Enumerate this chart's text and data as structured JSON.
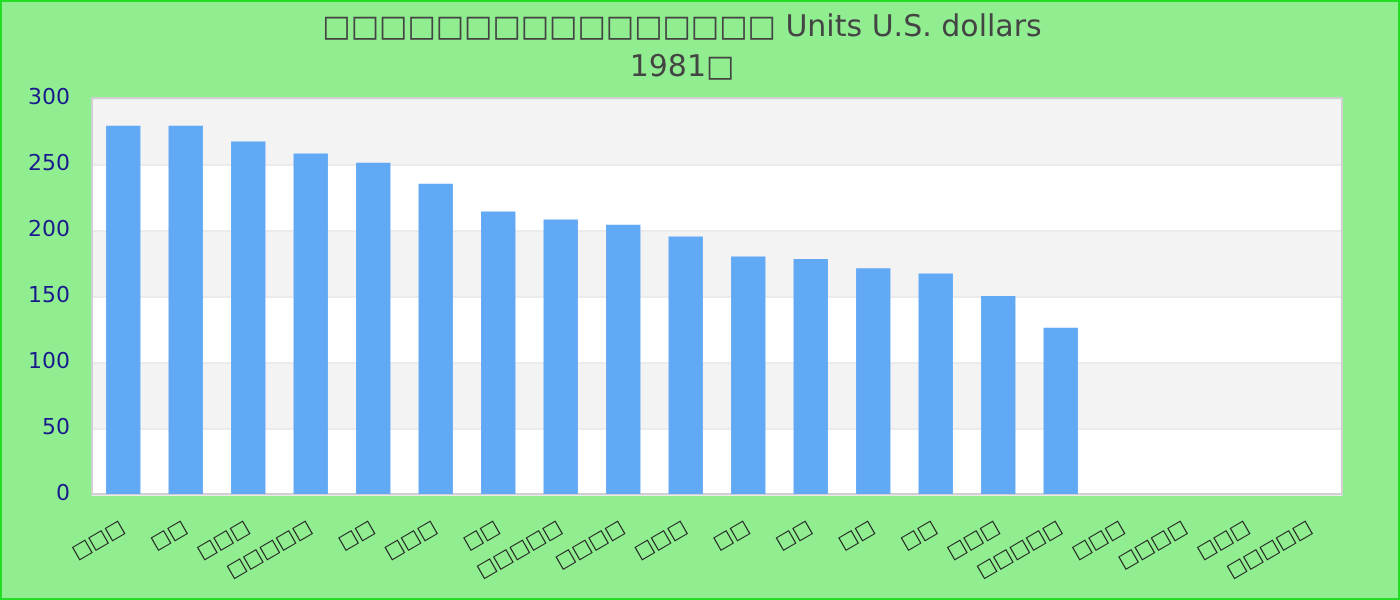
{
  "chart_data": {
    "type": "bar",
    "title": "□□□□□□□□□□□□□□□□ Units U.S. dollars",
    "subtitle": "1981□",
    "categories": [
      "□□□",
      "□□",
      "□□□",
      "□□□□□",
      "□□",
      "□□□",
      "□□",
      "□□□□□",
      "□□□□",
      "□□□",
      "□□",
      "□□",
      "□□",
      "□□",
      "□□□",
      "□□□□□",
      "□□□",
      "□□□□",
      "□□□",
      "□□□□□"
    ],
    "values": [
      279,
      279,
      267,
      258,
      251,
      235,
      214,
      208,
      204,
      195,
      180,
      178,
      171,
      167,
      150,
      126,
      null,
      null,
      null,
      null
    ],
    "color": "#62a9f5",
    "ylim": [
      0,
      300
    ],
    "yticks": [
      0,
      50,
      100,
      150,
      200,
      250,
      300
    ],
    "grid": true,
    "legend": false
  }
}
